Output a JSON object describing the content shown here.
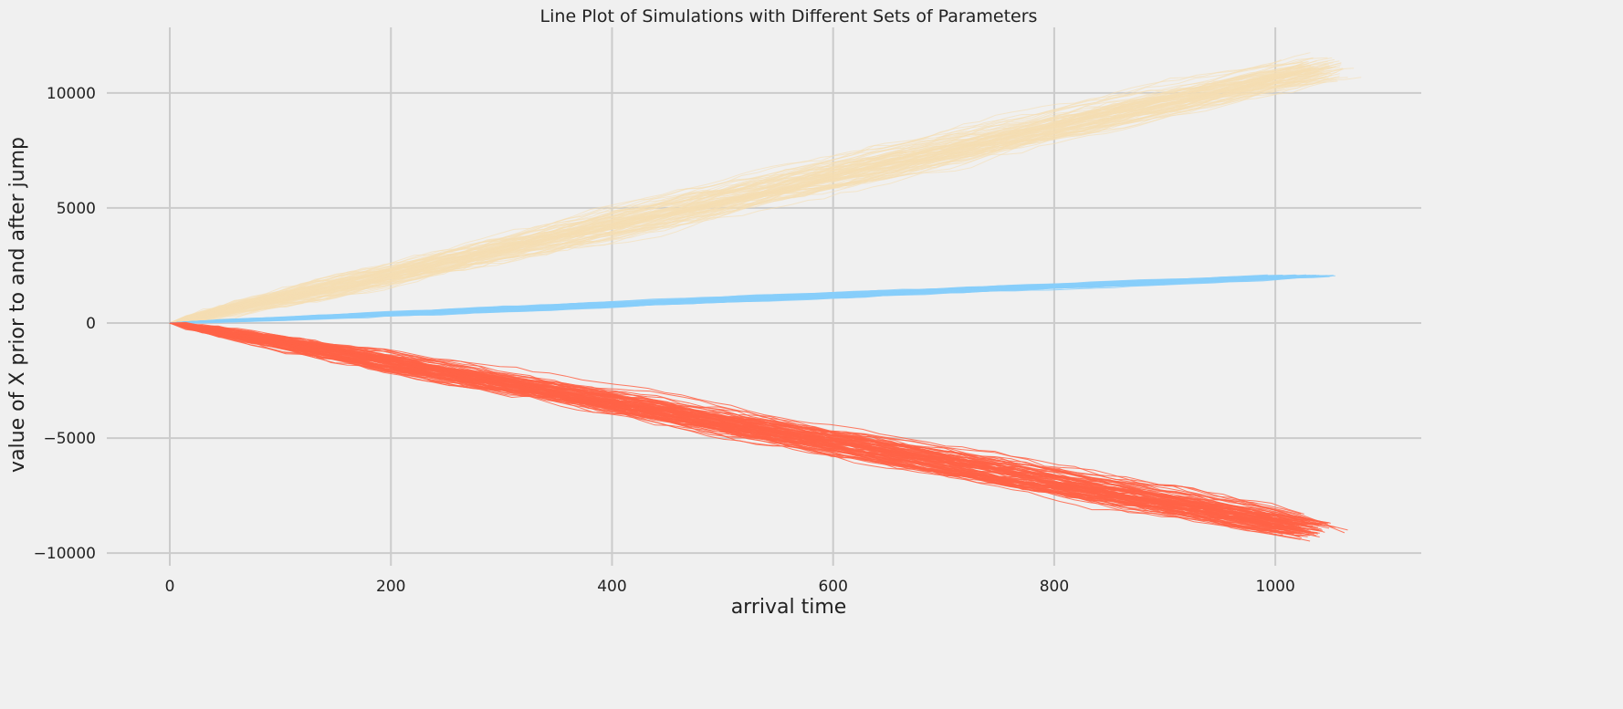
{
  "chart_data": {
    "type": "line",
    "title": "Line Plot of Simulations with Different Sets of Parameters",
    "xlabel": "arrival time",
    "ylabel": "value of X prior to and after jump",
    "xlim": [
      -57,
      1132
    ],
    "ylim": [
      -10550,
      12850
    ],
    "x_ticks": [
      0,
      200,
      400,
      600,
      800,
      1000
    ],
    "y_ticks": [
      -10000,
      -5000,
      0,
      5000,
      10000
    ],
    "y_tick_labels": [
      "−10000",
      "−5000",
      "0",
      "5000",
      "10000"
    ],
    "grid": true,
    "legend": "none",
    "simulations_per_series": 100,
    "series": [
      {
        "color": "#f5deb3",
        "slope_per_time": 10.5,
        "mean_final_time": 1040,
        "mean_final_value": 11000,
        "final_value_range": [
          9800,
          11900
        ]
      },
      {
        "color": "#87cefa",
        "slope_per_time": 2.0,
        "mean_final_time": 1030,
        "mean_final_value": 2050,
        "final_value_range": [
          1950,
          2100
        ]
      },
      {
        "color": "#ff6347",
        "slope_per_time": -8.6,
        "mean_final_time": 1030,
        "mean_final_value": -8900,
        "final_value_range": [
          -9900,
          -8000
        ]
      }
    ]
  }
}
